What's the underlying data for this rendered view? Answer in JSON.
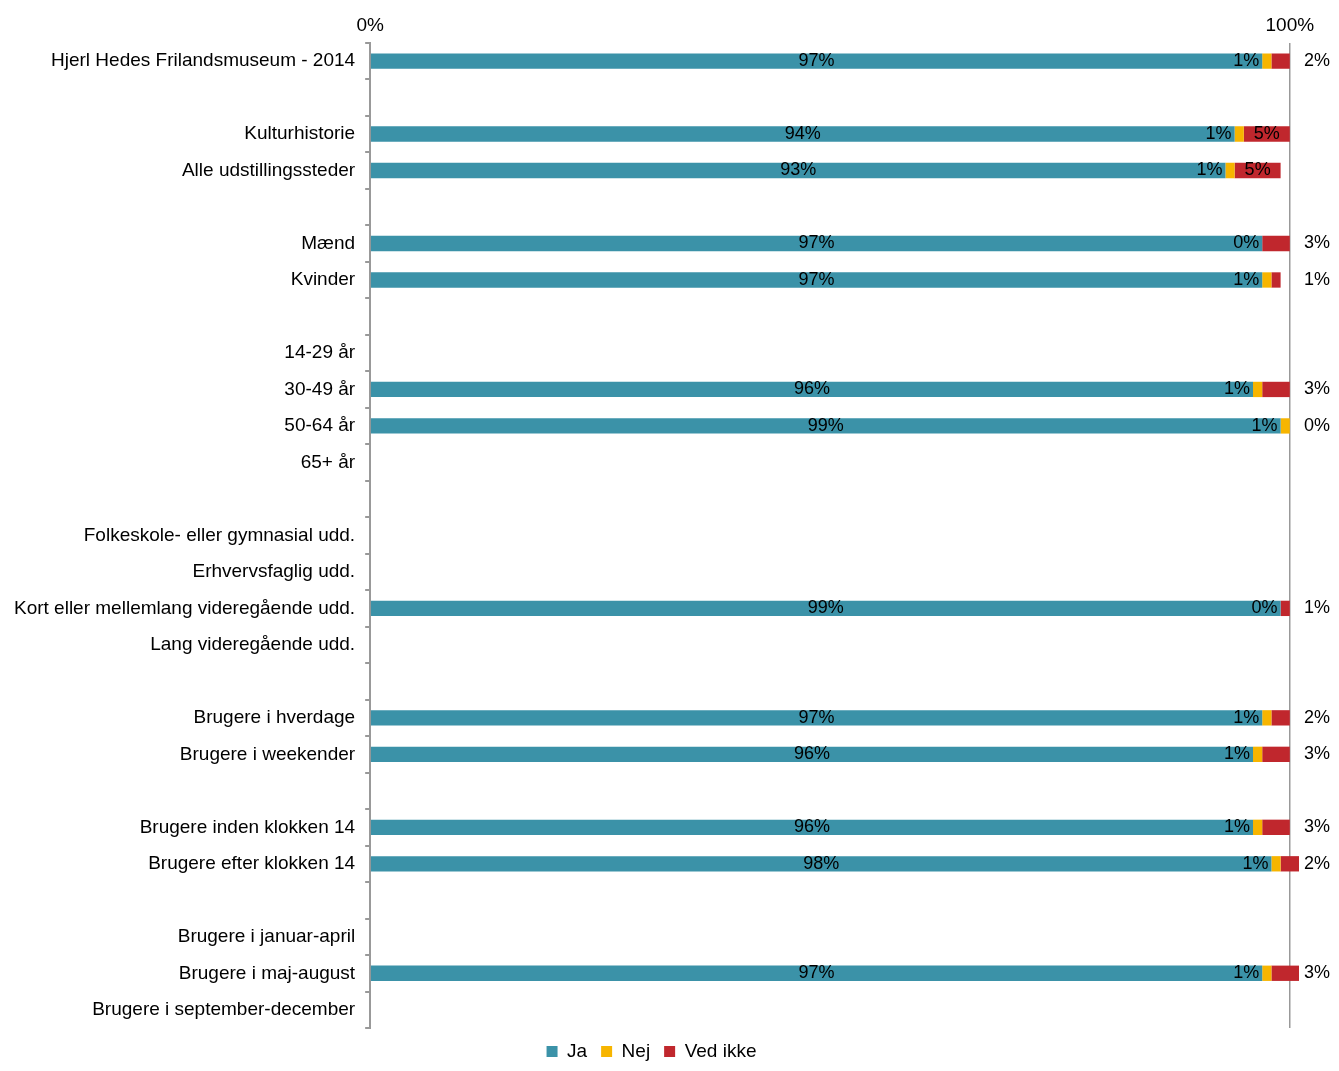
{
  "chart_data": {
    "type": "bar",
    "orientation": "horizontal",
    "stacked": true,
    "grid": "x",
    "legend": "bottom",
    "categories": [
      "Hjerl Hedes Frilandsmuseum - 2014",
      null,
      "Kulturhistorie",
      "Alle udstillingssteder",
      null,
      "Mænd",
      "Kvinder",
      null,
      "14-29 år",
      "30-49 år",
      "50-64 år",
      "65+ år",
      null,
      "Folkeskole- eller gymnasial udd.",
      "Erhvervsfaglig udd.",
      "Kort eller mellemlang videregående udd.",
      "Lang videregående udd.",
      null,
      "Brugere i hverdage",
      "Brugere i weekender",
      null,
      "Brugere inden klokken 14",
      "Brugere efter klokken 14",
      null,
      "Brugere i januar-april",
      "Brugere i maj-august",
      "Brugere i september-december"
    ],
    "xlim": [
      0,
      101
    ],
    "xticks": [
      {
        "value": 0,
        "label": "0%"
      },
      {
        "value": 100,
        "label": "100%"
      }
    ],
    "series": [
      {
        "name": "Ja",
        "color": "#3b92a8",
        "values": [
          97,
          null,
          94,
          93,
          null,
          97,
          97,
          null,
          null,
          96,
          99,
          null,
          null,
          null,
          null,
          99,
          null,
          null,
          97,
          96,
          null,
          96,
          98,
          null,
          null,
          97,
          null
        ],
        "value_labels": [
          "97%",
          null,
          "94%",
          "93%",
          null,
          "97%",
          "97%",
          null,
          null,
          "96%",
          "99%",
          null,
          null,
          null,
          null,
          "99%",
          null,
          null,
          "97%",
          "96%",
          null,
          "96%",
          "98%",
          null,
          null,
          "97%",
          null
        ]
      },
      {
        "name": "Nej",
        "color": "#f7b500",
        "values": [
          1,
          null,
          1,
          1,
          null,
          0,
          1,
          null,
          null,
          1,
          1,
          null,
          null,
          null,
          null,
          0,
          null,
          null,
          1,
          1,
          null,
          1,
          1,
          null,
          null,
          1,
          null
        ],
        "value_labels": [
          "1%",
          null,
          "1%",
          "1%",
          null,
          "0%",
          "1%",
          null,
          null,
          "1%",
          "1%",
          null,
          null,
          null,
          null,
          "0%",
          null,
          null,
          "1%",
          "1%",
          null,
          "1%",
          "1%",
          null,
          null,
          "1%",
          null
        ]
      },
      {
        "name": "Ved ikke",
        "color": "#c0272d",
        "values": [
          2,
          null,
          5,
          5,
          null,
          3,
          1,
          null,
          null,
          3,
          0,
          null,
          null,
          null,
          null,
          1,
          null,
          null,
          2,
          3,
          null,
          3,
          2,
          null,
          null,
          3,
          null
        ],
        "value_labels": [
          "2%",
          null,
          "5%",
          "5%",
          null,
          "3%",
          "1%",
          null,
          null,
          "3%",
          "0%",
          null,
          null,
          null,
          null,
          "1%",
          null,
          null,
          "2%",
          "3%",
          null,
          "3%",
          "2%",
          null,
          null,
          "3%",
          null
        ]
      }
    ]
  }
}
